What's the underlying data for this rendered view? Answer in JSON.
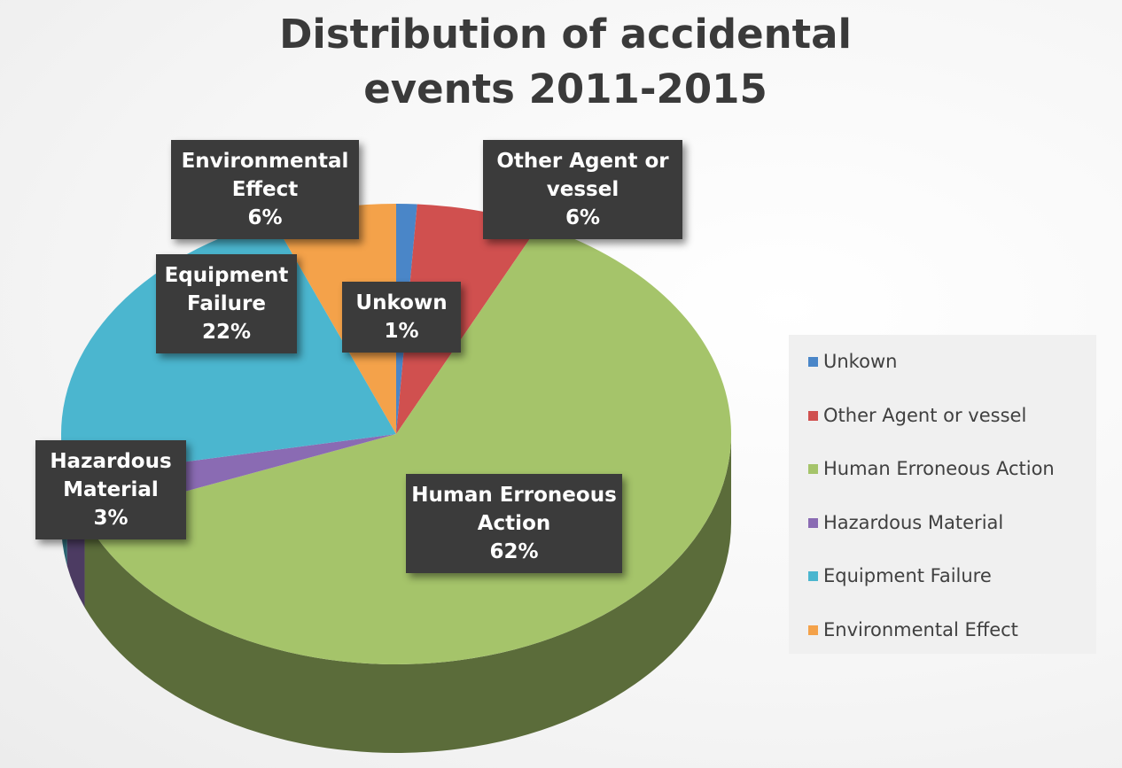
{
  "chart_data": {
    "type": "pie3d",
    "title": "Distribution of accidental events 2011-2015",
    "categories": [
      "Unkown",
      "Other Agent or vessel",
      "Human Erroneous Action",
      "Hazardous Material",
      "Equipment Failure",
      "Environmental Effect"
    ],
    "values": [
      1,
      6,
      62,
      3,
      22,
      6
    ],
    "value_labels": [
      "1%",
      "6%",
      "62%",
      "3%",
      "22%",
      "6%"
    ],
    "colors": [
      "#4a86c8",
      "#d0504f",
      "#a5c46a",
      "#8a6bb3",
      "#4bb6cf",
      "#f4a24a"
    ],
    "legend": "right"
  }
}
